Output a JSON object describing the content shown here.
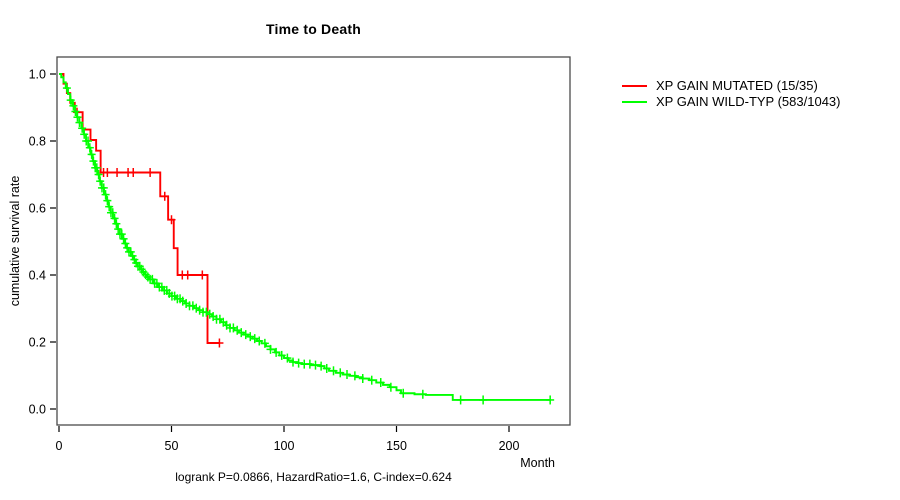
{
  "title": "Time to Death",
  "chart_data": {
    "type": "line",
    "variant": "kaplan_meier_step",
    "title": "Time to Death",
    "xlabel": "Month",
    "ylabel": "cumulative survival rate",
    "x_ticks": [
      0,
      50,
      100,
      150,
      200
    ],
    "y_ticks": [
      "0.0",
      "0.2",
      "0.4",
      "0.6",
      "0.8",
      "1.0"
    ],
    "xlim": [
      0,
      227
    ],
    "ylim": [
      0,
      1
    ],
    "grid": false,
    "legend_position": "right-outside",
    "annotation": "logrank P=0.0866, HazardRatio=1.6, C-index=0.624",
    "series": [
      {
        "name": "XP GAIN MUTATED (15/35)",
        "color": "#ff0000",
        "events": 15,
        "n": 35,
        "steps": [
          [
            0,
            1.0
          ],
          [
            2,
            0.971
          ],
          [
            3.5,
            0.943
          ],
          [
            5,
            0.914
          ],
          [
            7,
            0.886
          ],
          [
            10.5,
            0.834
          ],
          [
            14,
            0.803
          ],
          [
            16.5,
            0.771
          ],
          [
            18.5,
            0.706
          ],
          [
            45,
            0.635
          ],
          [
            48.5,
            0.565
          ],
          [
            51,
            0.48
          ],
          [
            52.7,
            0.4
          ],
          [
            66,
            0.197
          ]
        ],
        "end_time": 71.5,
        "censor_times": [
          8,
          19.8,
          21.5,
          25.8,
          30.7,
          33,
          40.5,
          47,
          50,
          54.8,
          57.2,
          63.7,
          71.3
        ]
      },
      {
        "name": "XP GAIN WILD-TYP (583/1043)",
        "color": "#00ff00",
        "events": 583,
        "n": 1043,
        "steps": [
          [
            0,
            1.0
          ],
          [
            1,
            0.99
          ],
          [
            2,
            0.975
          ],
          [
            3,
            0.958
          ],
          [
            4,
            0.94
          ],
          [
            5,
            0.922
          ],
          [
            6,
            0.905
          ],
          [
            7,
            0.888
          ],
          [
            8,
            0.871
          ],
          [
            9,
            0.855
          ],
          [
            10,
            0.838
          ],
          [
            11,
            0.82
          ],
          [
            12,
            0.8
          ],
          [
            13,
            0.78
          ],
          [
            14,
            0.76
          ],
          [
            15,
            0.74
          ],
          [
            16,
            0.72
          ],
          [
            17,
            0.7
          ],
          [
            18,
            0.68
          ],
          [
            19,
            0.66
          ],
          [
            20,
            0.64
          ],
          [
            21,
            0.622
          ],
          [
            22,
            0.604
          ],
          [
            23,
            0.586
          ],
          [
            24,
            0.569
          ],
          [
            25,
            0.553
          ],
          [
            26,
            0.537
          ],
          [
            27,
            0.522
          ],
          [
            28,
            0.508
          ],
          [
            29,
            0.494
          ],
          [
            30,
            0.481
          ],
          [
            31,
            0.469
          ],
          [
            32,
            0.457
          ],
          [
            33,
            0.446
          ],
          [
            34,
            0.436
          ],
          [
            35,
            0.426
          ],
          [
            36,
            0.417
          ],
          [
            37,
            0.409
          ],
          [
            38,
            0.401
          ],
          [
            39,
            0.394
          ],
          [
            40,
            0.387
          ],
          [
            42,
            0.375
          ],
          [
            44,
            0.364
          ],
          [
            46,
            0.354
          ],
          [
            48,
            0.345
          ],
          [
            50,
            0.337
          ],
          [
            52,
            0.329
          ],
          [
            54,
            0.322
          ],
          [
            56,
            0.315
          ],
          [
            58,
            0.308
          ],
          [
            60,
            0.301
          ],
          [
            62,
            0.295
          ],
          [
            64,
            0.289
          ],
          [
            66,
            0.283
          ],
          [
            68,
            0.276
          ],
          [
            70,
            0.268
          ],
          [
            72,
            0.259
          ],
          [
            74,
            0.25
          ],
          [
            76,
            0.242
          ],
          [
            78,
            0.235
          ],
          [
            80,
            0.228
          ],
          [
            82,
            0.222
          ],
          [
            84,
            0.216
          ],
          [
            86,
            0.21
          ],
          [
            88,
            0.203
          ],
          [
            90,
            0.196
          ],
          [
            92,
            0.187
          ],
          [
            94,
            0.178
          ],
          [
            96,
            0.169
          ],
          [
            98,
            0.16
          ],
          [
            100,
            0.152
          ],
          [
            102,
            0.145
          ],
          [
            104,
            0.14
          ],
          [
            106,
            0.137
          ],
          [
            108,
            0.134
          ],
          [
            112,
            0.131
          ],
          [
            116,
            0.128
          ],
          [
            118,
            0.121
          ],
          [
            120,
            0.114
          ],
          [
            123,
            0.108
          ],
          [
            126,
            0.103
          ],
          [
            129,
            0.099
          ],
          [
            132,
            0.095
          ],
          [
            135,
            0.091
          ],
          [
            138,
            0.086
          ],
          [
            141,
            0.079
          ],
          [
            144,
            0.072
          ],
          [
            147,
            0.065
          ],
          [
            150,
            0.056
          ],
          [
            152,
            0.047
          ],
          [
            158,
            0.044
          ],
          [
            163,
            0.042
          ],
          [
            175,
            0.027
          ]
        ],
        "end_time": 218.5,
        "censor_times": [
          3.5,
          5.2,
          6.4,
          7.3,
          8.2,
          9.1,
          10.3,
          11.2,
          12.1,
          12.9,
          13.7,
          14.5,
          15.3,
          16.1,
          16.8,
          17.6,
          18.3,
          19.1,
          19.9,
          20.7,
          21.5,
          22.3,
          23.1,
          23.9,
          24.7,
          25.5,
          26.3,
          27.1,
          27.9,
          28.7,
          29.5,
          30.3,
          31.1,
          31.9,
          32.7,
          33.5,
          34.3,
          35.1,
          35.9,
          36.7,
          37.5,
          38.5,
          39.5,
          40.5,
          41.5,
          42.5,
          43.5,
          44.6,
          45.7,
          46.8,
          47.9,
          49,
          50.2,
          51.4,
          52.6,
          53.8,
          55,
          56.5,
          58,
          59.5,
          61,
          62.5,
          64,
          65.5,
          67,
          68.5,
          70,
          71.5,
          73,
          74.5,
          76,
          77.5,
          79.2,
          81,
          83,
          85,
          87,
          89,
          91.5,
          94,
          96.5,
          99,
          101.5,
          104,
          106.5,
          109,
          111.5,
          114,
          116.5,
          119,
          122,
          125,
          128,
          131.5,
          135,
          139,
          143,
          147.5,
          153,
          161.7,
          178.5,
          188.5,
          218.3
        ]
      }
    ]
  }
}
